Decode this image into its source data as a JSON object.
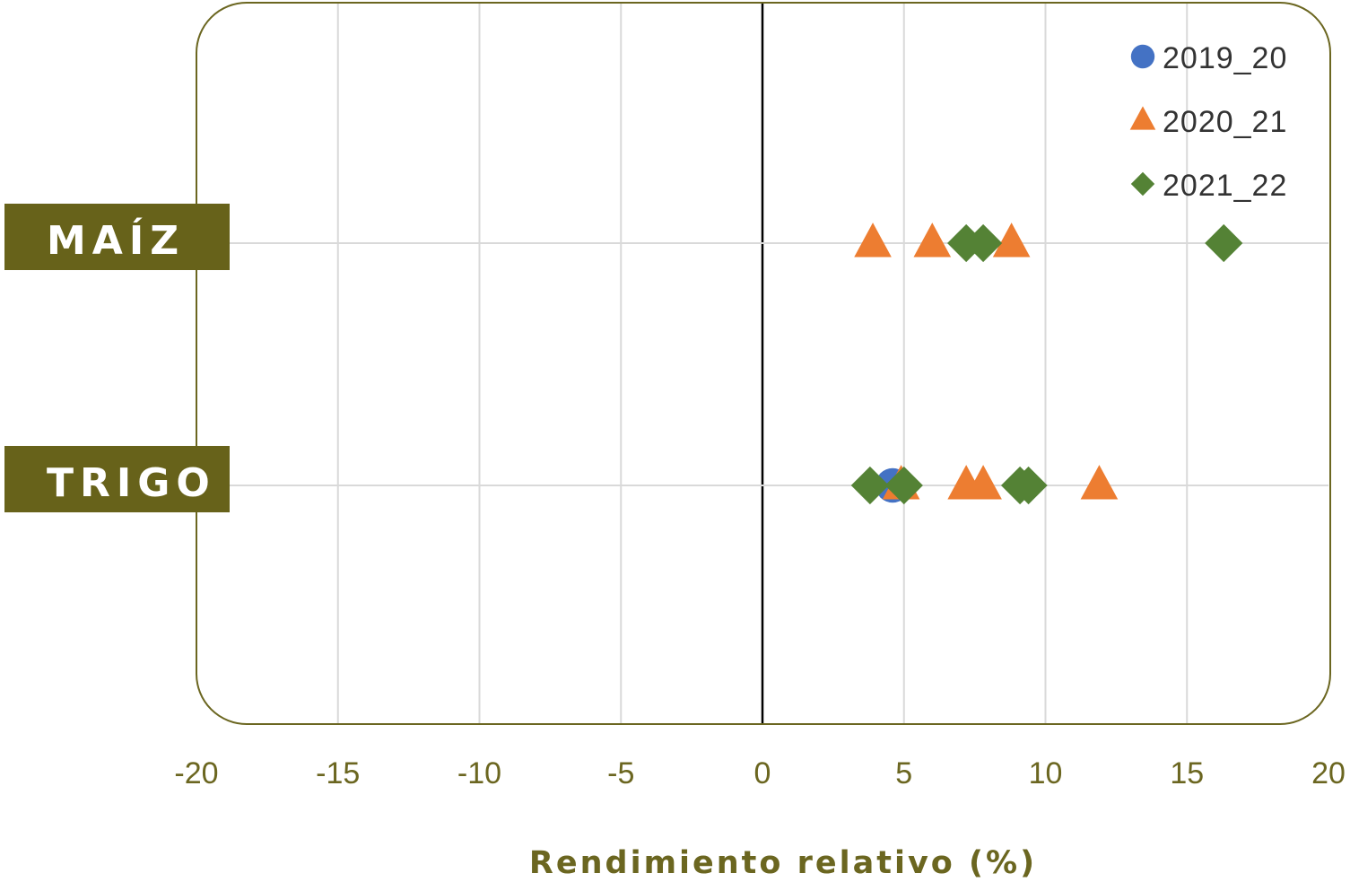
{
  "chart_data": {
    "type": "scatter",
    "title": "",
    "xlabel": "Rendimiento relativo (%)",
    "ylabel": "",
    "xlim": [
      -20,
      20
    ],
    "x_ticks": [
      "-20",
      "-15",
      "-10",
      "-5",
      "0",
      "5",
      "10",
      "15",
      "20"
    ],
    "categories": [
      "MAÍZ",
      "TRIGO"
    ],
    "grid": true,
    "legend_position": "top-right",
    "colors": {
      "frame": "#6b6620",
      "label_bg": "#67621a",
      "label_text": "#ffffff",
      "tick_text": "#6b6620",
      "grid": "#d9d9d9",
      "zero_line": "#000000"
    },
    "series": [
      {
        "name": "2019_20",
        "marker": "circle",
        "color": "#4472c4",
        "points": [
          {
            "category": "TRIGO",
            "x": 4.6
          }
        ]
      },
      {
        "name": "2020_21",
        "marker": "triangle",
        "color": "#ed7d31",
        "points": [
          {
            "category": "MAÍZ",
            "x": 3.9
          },
          {
            "category": "MAÍZ",
            "x": 6.0
          },
          {
            "category": "MAÍZ",
            "x": 8.8
          },
          {
            "category": "TRIGO",
            "x": 4.9
          },
          {
            "category": "TRIGO",
            "x": 7.2
          },
          {
            "category": "TRIGO",
            "x": 7.8
          },
          {
            "category": "TRIGO",
            "x": 11.9
          }
        ]
      },
      {
        "name": "2021_22",
        "marker": "diamond",
        "color": "#548235",
        "points": [
          {
            "category": "MAÍZ",
            "x": 7.2
          },
          {
            "category": "MAÍZ",
            "x": 7.8
          },
          {
            "category": "MAÍZ",
            "x": 16.3
          },
          {
            "category": "TRIGO",
            "x": 3.8
          },
          {
            "category": "TRIGO",
            "x": 5.0
          },
          {
            "category": "TRIGO",
            "x": 9.1
          },
          {
            "category": "TRIGO",
            "x": 9.4
          }
        ]
      }
    ]
  }
}
